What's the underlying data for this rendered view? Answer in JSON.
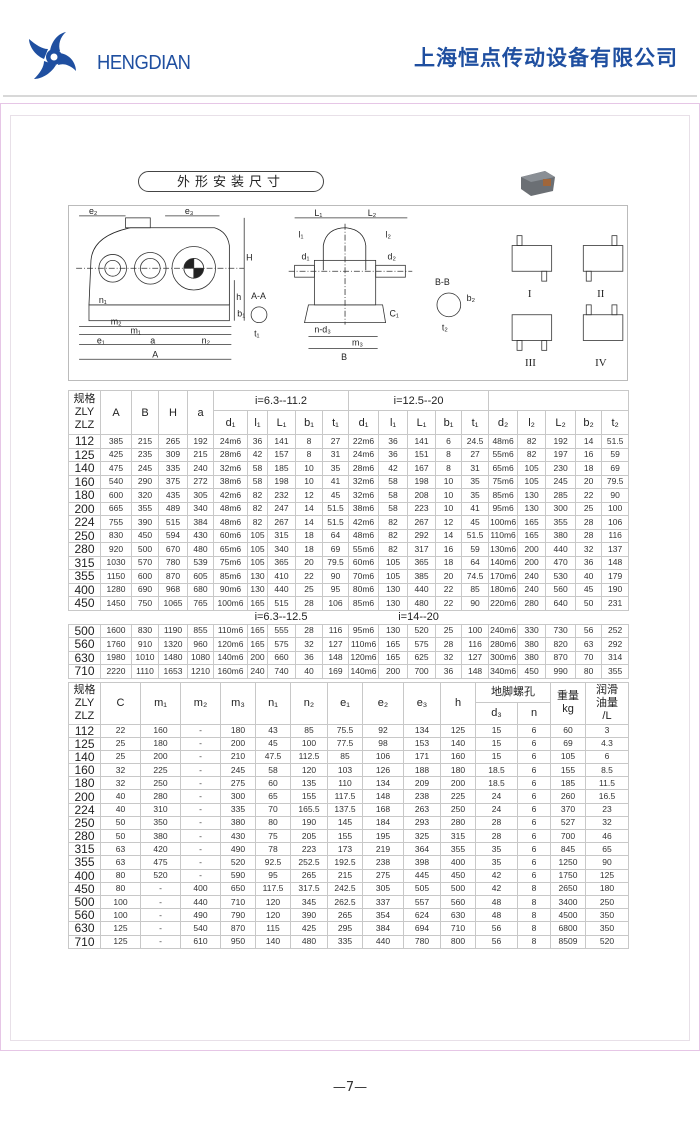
{
  "header": {
    "brand": "HENGDIAN",
    "company": "上海恒点传动设备有限公司",
    "brand_color": "#1f4fa0"
  },
  "section_title": "外形安装尺寸",
  "drawing": {
    "labels": {
      "e2": "e₂",
      "e3": "e₃",
      "H": "H",
      "h": "h",
      "n1": "n₁",
      "m2": "m₂",
      "m1": "m₁",
      "e1": "e₁",
      "a": "a",
      "n2": "n₂",
      "A": "A",
      "AA": "A-A",
      "b1": "b₁",
      "t1": "t₁",
      "L1": "L₁",
      "L2": "L₂",
      "l1": "l₁",
      "l2": "l₂",
      "d1": "d₁",
      "d2": "d₂",
      "C1": "C₁",
      "nd3": "n-d₃",
      "m3": "m₃",
      "B": "B",
      "BB": "B-B",
      "b2": "b₂",
      "t2": "t₂"
    },
    "assembly_types": [
      "I",
      "II",
      "III",
      "IV"
    ]
  },
  "table1": {
    "spec_header": [
      "规格",
      "ZLY",
      "ZLZ"
    ],
    "main_headers": [
      "A",
      "B",
      "H",
      "a"
    ],
    "group_headers": [
      "i=6.3--11.2",
      "i=12.5--20",
      ""
    ],
    "sub_headers": [
      "d₁",
      "l₁",
      "L₁",
      "b₁",
      "t₁",
      "d₁",
      "l₁",
      "L₁",
      "b₁",
      "t₁",
      "d₂",
      "l₂",
      "L₂",
      "b₂",
      "t₂"
    ],
    "rows_a": [
      [
        "112",
        "385",
        "215",
        "265",
        "192",
        "24m6",
        "36",
        "141",
        "8",
        "27",
        "22m6",
        "36",
        "141",
        "6",
        "24.5",
        "48m6",
        "82",
        "192",
        "14",
        "51.5"
      ],
      [
        "125",
        "425",
        "235",
        "309",
        "215",
        "28m6",
        "42",
        "157",
        "8",
        "31",
        "24m6",
        "36",
        "151",
        "8",
        "27",
        "55m6",
        "82",
        "197",
        "16",
        "59"
      ],
      [
        "140",
        "475",
        "245",
        "335",
        "240",
        "32m6",
        "58",
        "185",
        "10",
        "35",
        "28m6",
        "42",
        "167",
        "8",
        "31",
        "65m6",
        "105",
        "230",
        "18",
        "69"
      ],
      [
        "160",
        "540",
        "290",
        "375",
        "272",
        "38m6",
        "58",
        "198",
        "10",
        "41",
        "32m6",
        "58",
        "198",
        "10",
        "35",
        "75m6",
        "105",
        "245",
        "20",
        "79.5"
      ],
      [
        "180",
        "600",
        "320",
        "435",
        "305",
        "42m6",
        "82",
        "232",
        "12",
        "45",
        "32m6",
        "58",
        "208",
        "10",
        "35",
        "85m6",
        "130",
        "285",
        "22",
        "90"
      ],
      [
        "200",
        "665",
        "355",
        "489",
        "340",
        "48m6",
        "82",
        "247",
        "14",
        "51.5",
        "38m6",
        "58",
        "223",
        "10",
        "41",
        "95m6",
        "130",
        "300",
        "25",
        "100"
      ],
      [
        "224",
        "755",
        "390",
        "515",
        "384",
        "48m6",
        "82",
        "267",
        "14",
        "51.5",
        "42m6",
        "82",
        "267",
        "12",
        "45",
        "100m6",
        "165",
        "355",
        "28",
        "106"
      ],
      [
        "250",
        "830",
        "450",
        "594",
        "430",
        "60m6",
        "105",
        "315",
        "18",
        "64",
        "48m6",
        "82",
        "292",
        "14",
        "51.5",
        "110m6",
        "165",
        "380",
        "28",
        "116"
      ],
      [
        "280",
        "920",
        "500",
        "670",
        "480",
        "65m6",
        "105",
        "340",
        "18",
        "69",
        "55m6",
        "82",
        "317",
        "16",
        "59",
        "130m6",
        "200",
        "440",
        "32",
        "137"
      ],
      [
        "315",
        "1030",
        "570",
        "780",
        "539",
        "75m6",
        "105",
        "365",
        "20",
        "79.5",
        "60m6",
        "105",
        "365",
        "18",
        "64",
        "140m6",
        "200",
        "470",
        "36",
        "148"
      ],
      [
        "355",
        "1150",
        "600",
        "870",
        "605",
        "85m6",
        "130",
        "410",
        "22",
        "90",
        "70m6",
        "105",
        "385",
        "20",
        "74.5",
        "170m6",
        "240",
        "530",
        "40",
        "179"
      ],
      [
        "400",
        "1280",
        "690",
        "968",
        "680",
        "90m6",
        "130",
        "440",
        "25",
        "95",
        "80m6",
        "130",
        "440",
        "22",
        "85",
        "180m6",
        "240",
        "560",
        "45",
        "190"
      ],
      [
        "450",
        "1450",
        "750",
        "1065",
        "765",
        "100m6",
        "165",
        "515",
        "28",
        "106",
        "85m6",
        "130",
        "480",
        "22",
        "90",
        "220m6",
        "280",
        "640",
        "50",
        "231"
      ]
    ],
    "divider_groups": [
      "i=6.3--12.5",
      "i=14--20"
    ],
    "rows_b": [
      [
        "500",
        "1600",
        "830",
        "1190",
        "855",
        "110m6",
        "165",
        "555",
        "28",
        "116",
        "95m6",
        "130",
        "520",
        "25",
        "100",
        "240m6",
        "330",
        "730",
        "56",
        "252"
      ],
      [
        "560",
        "1760",
        "910",
        "1320",
        "960",
        "120m6",
        "165",
        "575",
        "32",
        "127",
        "110m6",
        "165",
        "575",
        "28",
        "116",
        "280m6",
        "380",
        "820",
        "63",
        "292"
      ],
      [
        "630",
        "1980",
        "1010",
        "1480",
        "1080",
        "140m6",
        "200",
        "660",
        "36",
        "148",
        "120m6",
        "165",
        "625",
        "32",
        "127",
        "300m6",
        "380",
        "870",
        "70",
        "314"
      ],
      [
        "710",
        "2220",
        "1110",
        "1653",
        "1210",
        "160m6",
        "240",
        "740",
        "40",
        "169",
        "140m6",
        "200",
        "700",
        "36",
        "148",
        "340m6",
        "450",
        "990",
        "80",
        "355"
      ]
    ]
  },
  "table2": {
    "spec_header": [
      "规格",
      "ZLY",
      "ZLZ"
    ],
    "main_headers": [
      "C",
      "m₁",
      "m₂",
      "m₃",
      "n₁",
      "n₂",
      "e₁",
      "e₂",
      "e₃",
      "h"
    ],
    "foot_bolt_header": "地脚螺孔",
    "foot_bolt_sub": [
      "d₃",
      "n"
    ],
    "weight_header": [
      "重量",
      "kg"
    ],
    "oil_header": [
      "润滑",
      "油量",
      "/L"
    ],
    "rows": [
      [
        "112",
        "22",
        "160",
        "-",
        "180",
        "43",
        "85",
        "75.5",
        "92",
        "134",
        "125",
        "15",
        "6",
        "60",
        "3"
      ],
      [
        "125",
        "25",
        "180",
        "-",
        "200",
        "45",
        "100",
        "77.5",
        "98",
        "153",
        "140",
        "15",
        "6",
        "69",
        "4.3"
      ],
      [
        "140",
        "25",
        "200",
        "-",
        "210",
        "47.5",
        "112.5",
        "85",
        "106",
        "171",
        "160",
        "15",
        "6",
        "105",
        "6"
      ],
      [
        "160",
        "32",
        "225",
        "-",
        "245",
        "58",
        "120",
        "103",
        "126",
        "188",
        "180",
        "18.5",
        "6",
        "155",
        "8.5"
      ],
      [
        "180",
        "32",
        "250",
        "-",
        "275",
        "60",
        "135",
        "110",
        "134",
        "209",
        "200",
        "18.5",
        "6",
        "185",
        "11.5"
      ],
      [
        "200",
        "40",
        "280",
        "-",
        "300",
        "65",
        "155",
        "117.5",
        "148",
        "238",
        "225",
        "24",
        "6",
        "260",
        "16.5"
      ],
      [
        "224",
        "40",
        "310",
        "-",
        "335",
        "70",
        "165.5",
        "137.5",
        "168",
        "263",
        "250",
        "24",
        "6",
        "370",
        "23"
      ],
      [
        "250",
        "50",
        "350",
        "-",
        "380",
        "80",
        "190",
        "145",
        "184",
        "293",
        "280",
        "28",
        "6",
        "527",
        "32"
      ],
      [
        "280",
        "50",
        "380",
        "-",
        "430",
        "75",
        "205",
        "155",
        "195",
        "325",
        "315",
        "28",
        "6",
        "700",
        "46"
      ],
      [
        "315",
        "63",
        "420",
        "-",
        "490",
        "78",
        "223",
        "173",
        "219",
        "364",
        "355",
        "35",
        "6",
        "845",
        "65"
      ],
      [
        "355",
        "63",
        "475",
        "-",
        "520",
        "92.5",
        "252.5",
        "192.5",
        "238",
        "398",
        "400",
        "35",
        "6",
        "1250",
        "90"
      ],
      [
        "400",
        "80",
        "520",
        "-",
        "590",
        "95",
        "265",
        "215",
        "275",
        "445",
        "450",
        "42",
        "6",
        "1750",
        "125"
      ],
      [
        "450",
        "80",
        "-",
        "400",
        "650",
        "117.5",
        "317.5",
        "242.5",
        "305",
        "505",
        "500",
        "42",
        "8",
        "2650",
        "180"
      ],
      [
        "500",
        "100",
        "-",
        "440",
        "710",
        "120",
        "345",
        "262.5",
        "337",
        "557",
        "560",
        "48",
        "8",
        "3400",
        "250"
      ],
      [
        "560",
        "100",
        "-",
        "490",
        "790",
        "120",
        "390",
        "265",
        "354",
        "624",
        "630",
        "48",
        "8",
        "4500",
        "350"
      ],
      [
        "630",
        "125",
        "-",
        "540",
        "870",
        "115",
        "425",
        "295",
        "384",
        "694",
        "710",
        "56",
        "8",
        "6800",
        "350"
      ],
      [
        "710",
        "125",
        "-",
        "610",
        "950",
        "140",
        "480",
        "335",
        "440",
        "780",
        "800",
        "56",
        "8",
        "8509",
        "520"
      ]
    ]
  },
  "footer": {
    "page_number": "—7—"
  }
}
